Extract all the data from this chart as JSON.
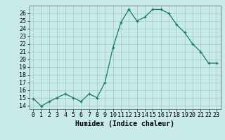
{
  "x": [
    0,
    1,
    2,
    3,
    4,
    5,
    6,
    7,
    8,
    9,
    10,
    11,
    12,
    13,
    14,
    15,
    16,
    17,
    18,
    19,
    20,
    21,
    22,
    23
  ],
  "y": [
    14.9,
    13.9,
    14.5,
    15.0,
    15.5,
    15.0,
    14.5,
    15.5,
    15.0,
    17.0,
    21.5,
    24.8,
    26.5,
    25.0,
    25.5,
    26.5,
    26.5,
    26.0,
    24.5,
    23.5,
    22.0,
    21.0,
    19.5,
    19.5
  ],
  "line_color": "#1a7a5e",
  "marker_color": "#1a7a5e",
  "bg_color": "#c8eae8",
  "grid_color": "#a0c8c5",
  "xlabel": "Humidex (Indice chaleur)",
  "xlim": [
    -0.5,
    23.5
  ],
  "ylim": [
    13.5,
    27
  ],
  "yticks": [
    14,
    15,
    16,
    17,
    18,
    19,
    20,
    21,
    22,
    23,
    24,
    25,
    26
  ],
  "xticks": [
    0,
    1,
    2,
    3,
    4,
    5,
    6,
    7,
    8,
    9,
    10,
    11,
    12,
    13,
    14,
    15,
    16,
    17,
    18,
    19,
    20,
    21,
    22,
    23
  ],
  "xtick_labels": [
    "0",
    "1",
    "2",
    "3",
    "4",
    "5",
    "6",
    "7",
    "8",
    "9",
    "10",
    "11",
    "12",
    "13",
    "14",
    "15",
    "16",
    "17",
    "18",
    "19",
    "20",
    "21",
    "22",
    "23"
  ],
  "label_fontsize": 7,
  "tick_fontsize": 6
}
